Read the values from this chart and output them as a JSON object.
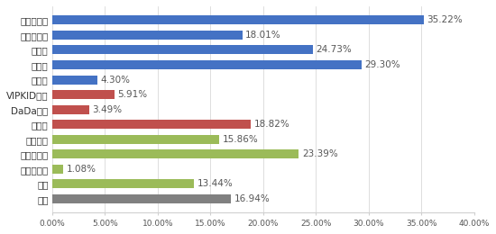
{
  "categories": [
    "学而思网校",
    "掌上一对一",
    "猿辅导",
    "作业帮",
    "智学网",
    "VIPKID英语",
    "DaDa英语",
    "新东方",
    "腾讯课堂",
    "网易云课堂",
    "超星学习通",
    "慕课",
    "其他"
  ],
  "values": [
    35.22,
    18.01,
    24.73,
    29.3,
    4.3,
    5.91,
    3.49,
    18.82,
    15.86,
    23.39,
    1.08,
    13.44,
    16.94
  ],
  "colors": [
    "#4472C4",
    "#4472C4",
    "#4472C4",
    "#4472C4",
    "#4472C4",
    "#C0504D",
    "#C0504D",
    "#C0504D",
    "#9BBB59",
    "#9BBB59",
    "#9BBB59",
    "#9BBB59",
    "#808080"
  ],
  "xlim": [
    0,
    40
  ],
  "xticks": [
    0,
    5,
    10,
    15,
    20,
    25,
    30,
    35,
    40
  ],
  "xtick_labels": [
    "0.00%",
    "5.00%",
    "10.00%",
    "15.00%",
    "20.00%",
    "25.00%",
    "30.00%",
    "35.00%",
    "40.00%"
  ],
  "bar_height": 0.6,
  "background_color": "#ffffff",
  "grid_color": "#d0d0d0",
  "label_fontsize": 7.5,
  "value_fontsize": 7.5,
  "xtick_fontsize": 6.5
}
